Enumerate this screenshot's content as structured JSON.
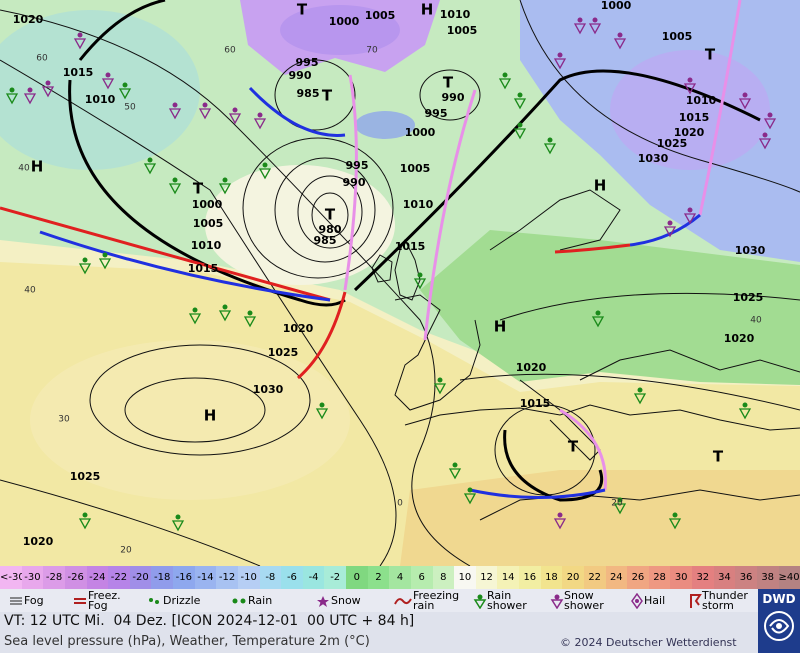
{
  "map": {
    "pressure_labels": [
      1020,
      1000,
      1005,
      1010,
      1005,
      1000,
      1005,
      1015,
      1010,
      995,
      990,
      985,
      990,
      995,
      1000,
      1010,
      1015,
      1020,
      1025,
      1030,
      995,
      990,
      1005,
      1010,
      1000,
      1005,
      1010,
      1015,
      980,
      985,
      1015,
      1030,
      1025,
      1020,
      1020,
      1025,
      1030,
      1020,
      1015,
      1025,
      1020
    ],
    "pressure_centers": [
      "H",
      "T",
      "H",
      "T",
      "T",
      "T",
      "T",
      "H",
      "T",
      "H",
      "H",
      "T",
      "T"
    ],
    "grid_labels": [
      60,
      50,
      40,
      40,
      30,
      20,
      0,
      60,
      70,
      40,
      20
    ]
  },
  "colorbar": {
    "labels": [
      "<-30",
      -30,
      -28,
      -26,
      -24,
      -22,
      -20,
      -18,
      -16,
      -14,
      -12,
      -10,
      -8,
      -6,
      -4,
      -2,
      0,
      2,
      4,
      6,
      8,
      10,
      12,
      14,
      16,
      18,
      20,
      22,
      24,
      26,
      28,
      30,
      32,
      34,
      36,
      38,
      "≥40 °C"
    ],
    "colors": [
      "#f2b6f2",
      "#e8a8ec",
      "#dc9ce8",
      "#d090e4",
      "#c484e4",
      "#b684e8",
      "#a08ee8",
      "#909ceb",
      "#8ea8ee",
      "#9ab4f0",
      "#a8c2f2",
      "#b6cef4",
      "#a8daf2",
      "#9ae0ec",
      "#9ae6e0",
      "#a8ecd8",
      "#80d880",
      "#8ce08c",
      "#a4e6a0",
      "#b6ecae",
      "#ccf0c0",
      "#f8f8f2",
      "#f6f6d4",
      "#f4f2b6",
      "#f2eea2",
      "#f2e48e",
      "#f2d884",
      "#f2ca82",
      "#f2b882",
      "#f0a682",
      "#ee9882",
      "#ea8c80",
      "#e48080",
      "#d88080",
      "#cc8282",
      "#c08282",
      "#b48282"
    ]
  },
  "weather_legend": [
    "Fog",
    "Freez. Fog",
    "Drizzle",
    "Rain",
    "Snow",
    "Freezing rain",
    "Rain shower",
    "Snow shower",
    "Hail",
    "Thunder storm"
  ],
  "footer": {
    "valid_time": "VT: 12 UTC Mi.  04 Dez. [ICON 2024-12-01  00 UTC + 84 h]",
    "description": "Sea level pressure (hPa), Weather, Temperature 2m (°C)",
    "copyright": "© 2024 Deutscher Wetterdienst",
    "logo": "DWD"
  }
}
